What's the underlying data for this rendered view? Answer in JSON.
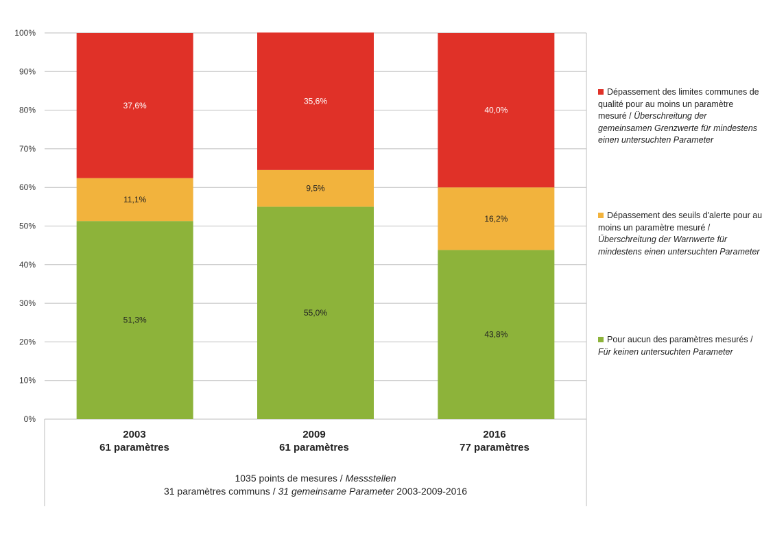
{
  "chart_data": {
    "type": "bar",
    "stacked": true,
    "categories": [
      "2003",
      "2009",
      "2016"
    ],
    "category_sublabels": [
      "61 paramètres",
      "61 paramètres",
      "77 paramètres"
    ],
    "series": [
      {
        "name": "Pour aucun des paramètres mesurés / Für keinen untersuchten Parameter",
        "color": "#8db33a",
        "values": [
          51.3,
          55.0,
          43.8
        ],
        "labels": [
          "51,3%",
          "55,0%",
          "43,8%"
        ]
      },
      {
        "name": "Dépassement des seuils d'alerte pour au moins un paramètre mesuré / Überschreitung der Warnwerte für mindestens einen untersuchten Parameter",
        "color": "#f2b33d",
        "values": [
          11.1,
          9.5,
          16.2
        ],
        "labels": [
          "11,1%",
          "9,5%",
          "16,2%"
        ]
      },
      {
        "name": "Dépassement des limites communes de qualité pour au moins un paramètre mesuré / Überschreitung der gemeinsamen Grenzwerte für mindestens einen untersuchten Parameter",
        "color": "#e03128",
        "values": [
          37.6,
          35.6,
          40.0
        ],
        "labels": [
          "37,6%",
          "35,6%",
          "40,0%"
        ]
      }
    ],
    "ylim": [
      0,
      100
    ],
    "yticks": [
      "0%",
      "10%",
      "20%",
      "30%",
      "40%",
      "50%",
      "60%",
      "70%",
      "80%",
      "90%",
      "100%"
    ],
    "grid": true,
    "legend_position": "right",
    "footer": {
      "line1_fr": "1035 points de mesures / ",
      "line1_de": "Messstellen",
      "line2_fr": "31 paramètres communs / ",
      "line2_de": "31 gemeinsame Parameter",
      "line2_end": " 2003-2009-2016"
    }
  },
  "legend": [
    {
      "fr": "Dépassement des limites communes de qualité pour au moins un paramètre mesuré / ",
      "de": "Überschreitung der gemeinsamen Grenzwerte für mindestens einen untersuchten Parameter",
      "color": "#e03128"
    },
    {
      "fr": "Dépassement des seuils d'alerte pour au moins un paramètre mesuré / ",
      "de": "Überschreitung der Warnwerte für mindestens einen untersuchten Parameter",
      "color": "#f2b33d"
    },
    {
      "fr": "Pour aucun des paramètres mesurés / ",
      "de": "Für keinen untersuchten Parameter",
      "color": "#8db33a"
    }
  ]
}
